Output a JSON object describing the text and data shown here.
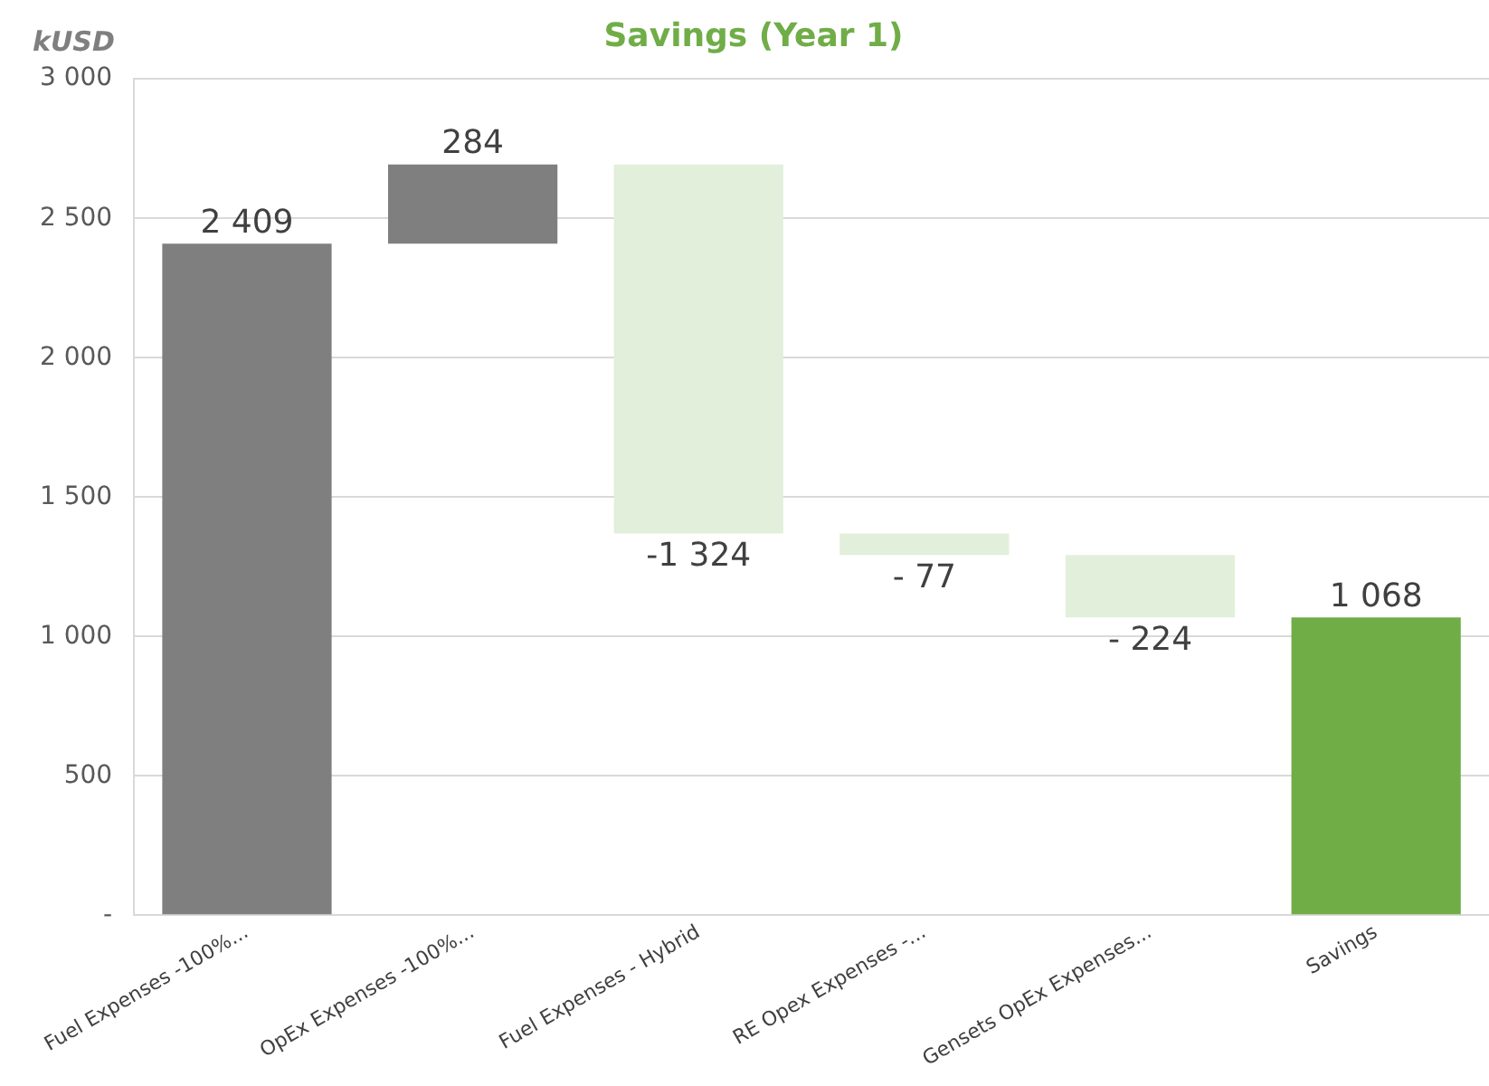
{
  "chart_data": {
    "type": "bar",
    "title": "Savings (Year 1)",
    "ylabel": "kUSD",
    "categories": [
      "Fuel Expenses -100%...",
      "OpEx Expenses -100%...",
      "Fuel Expenses - Hybrid",
      "RE Opex Expenses -...",
      "Gensets OpEx Expenses...",
      "Savings"
    ],
    "values": [
      2409,
      284,
      -1324,
      -77,
      -224,
      1068
    ],
    "base": [
      0,
      2409,
      2693,
      1369,
      1292,
      0
    ],
    "colors": [
      "#7f7f7f",
      "#7f7f7f",
      "#e2efda",
      "#e2efda",
      "#e2efda",
      "#70ad47"
    ],
    "value_labels": [
      "2 409",
      "284",
      "-1 324",
      "- 77",
      "- 224",
      "1 068"
    ],
    "ylim": [
      0,
      3000
    ],
    "yticks": [
      {
        "value": 0,
        "label": "-"
      },
      500,
      {
        "value": 1000,
        "label": "1 000"
      },
      {
        "value": 1500,
        "label": "1 500"
      },
      {
        "value": 2000,
        "label": "2 000"
      },
      {
        "value": 2500,
        "label": "2 500"
      },
      {
        "value": 3000,
        "label": "3 000"
      }
    ],
    "grid": "y",
    "legend": false
  }
}
